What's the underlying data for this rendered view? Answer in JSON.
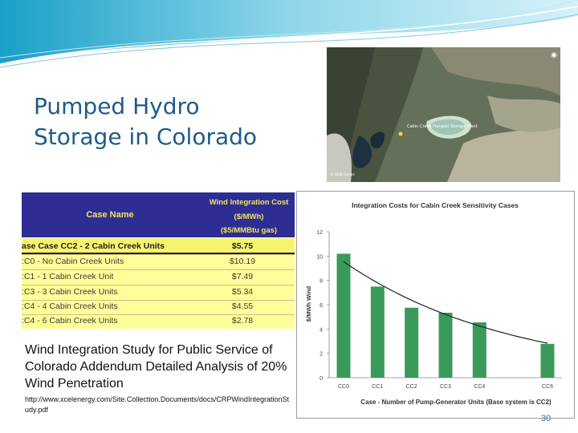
{
  "slide": {
    "title_lines": [
      "Pumped Hydro",
      "Storage in Colorado"
    ],
    "page_number": "30"
  },
  "map": {
    "label": "Cabin Creek Pumped Storage Plant",
    "copyright": "© 2008 Google"
  },
  "table": {
    "col_name": "Case Name",
    "col_cost_1": "Wind Integration Cost",
    "col_cost_2": "($/MWh)",
    "col_cost_3": "($5/MMBtu gas)",
    "rows": [
      {
        "name": "ase Case CC2 - 2 Cabin Creek Units",
        "cost": "$5.75"
      },
      {
        "name": ":C0 - No Cabin Creek Units",
        "cost": "$10.19"
      },
      {
        "name": ":C1 - 1 Cabin Creek Unit",
        "cost": "$7.49"
      },
      {
        "name": ":C3 - 3 Cabin Creek Units",
        "cost": "$5.34"
      },
      {
        "name": ":C4 - 4 Cabin Creek Units",
        "cost": "$4.55"
      },
      {
        "name": ":C4 - 6 Cabin Creek Units",
        "cost": "$2.78"
      }
    ]
  },
  "caption": "Wind Integration Study for Public Service of Colorado Addendum Detailed Analysis of 20% Wind Penetration",
  "url": "http://www.xcelenergy.com/Site.Collection.Documents/docs/CRPWindIntegrationStudy.pdf",
  "chart_data": {
    "type": "bar",
    "title": "Integration Costs for Cabin Creek Sensitivity Cases",
    "xlabel": "Case - Number of Pump-Generator Units (Base system is CC2)",
    "ylabel": "$/MWh Wind",
    "ylim": [
      0,
      12
    ],
    "yticks": [
      0,
      2,
      4,
      6,
      8,
      10,
      12
    ],
    "x": [
      0,
      1,
      2,
      3,
      4,
      6
    ],
    "categories": [
      "CC0",
      "CC1",
      "CC2",
      "CC3",
      "CC4",
      "CC6"
    ],
    "values": [
      10.19,
      7.49,
      5.75,
      5.34,
      4.55,
      2.78
    ],
    "bar_color": "#3a9a5a",
    "trend_color": "#222222",
    "grid": false,
    "legend": "none"
  }
}
